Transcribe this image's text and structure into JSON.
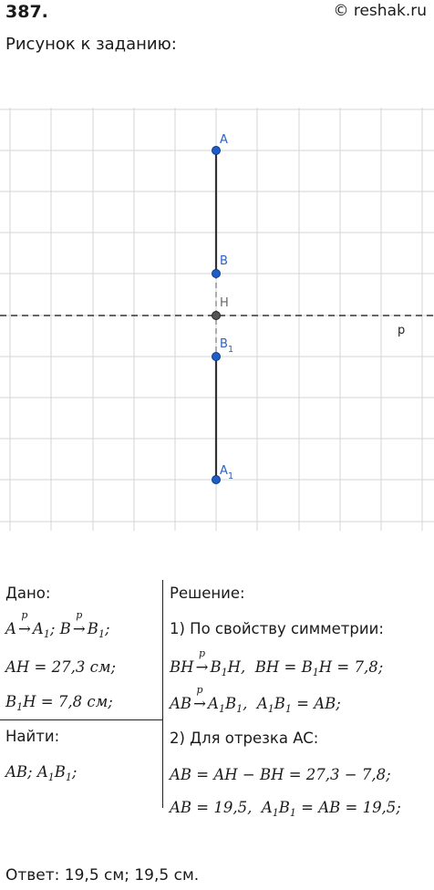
{
  "header": {
    "problem_number": "387.",
    "site": "© reshak.ru"
  },
  "caption": "Рисунок к заданию:",
  "figure": {
    "line_label": "p",
    "points": [
      {
        "name": "A",
        "sub": ""
      },
      {
        "name": "B",
        "sub": ""
      },
      {
        "name": "H",
        "sub": ""
      },
      {
        "name": "B",
        "sub": "1"
      },
      {
        "name": "A",
        "sub": "1"
      }
    ]
  },
  "given": {
    "title": "Дано:",
    "a": "A",
    "a1": "A",
    "b": "B",
    "b1": "B",
    "map_label": "p",
    "ah_eq": "AH = 27,3 см;",
    "b1h_b": "B",
    "b1h_rest": "H = 7,8 см;"
  },
  "find": {
    "title": "Найти:",
    "text_ab": "AB;",
    "text_a1b1_a": "A",
    "text_a1b1_b": "B",
    "text_a1b1_end": ";"
  },
  "solution": {
    "title": "Решение:",
    "step1": "1) По свойству симметрии:",
    "step2": "2) Для отрезка AC:",
    "line3": "AB = AH − BH = 27,3 − 7,8;",
    "line4_a": "AB = 19,5,",
    "line4_b": "= AB = 19,5;"
  },
  "answer": "Ответ:  19,5 см; 19,5 см."
}
